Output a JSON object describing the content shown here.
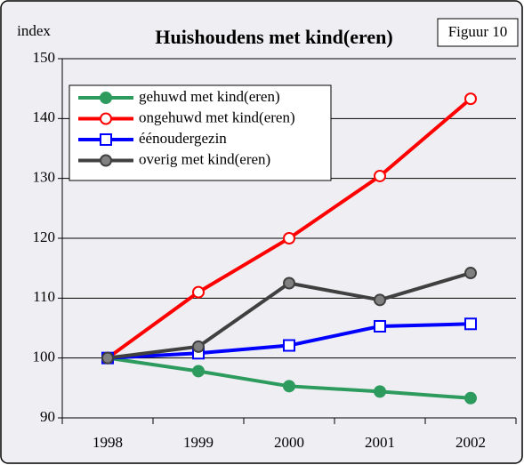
{
  "chart_data": {
    "type": "line",
    "title": "Huishoudens met kind(eren)",
    "ylabel": "index",
    "annotation": "Figuur 10",
    "categories": [
      "1998",
      "1999",
      "2000",
      "2001",
      "2002"
    ],
    "series": [
      {
        "name": "gehuwd met kind(eren)",
        "color": "#2e9b5e",
        "marker": "circle",
        "marker_fill": "#2e9b5e",
        "values": [
          100,
          97.8,
          95.3,
          94.4,
          93.3
        ]
      },
      {
        "name": "ongehuwd met kind(eren)",
        "color": "#ff0000",
        "marker": "circle",
        "marker_fill": "#ffffff",
        "values": [
          100,
          111,
          120,
          130.4,
          143.3
        ]
      },
      {
        "name": "éénoudergezin",
        "color": "#0000ff",
        "marker": "square",
        "marker_fill": "#ffffff",
        "values": [
          100,
          100.8,
          102.1,
          105.3,
          105.7
        ]
      },
      {
        "name": "overig met kind(eren)",
        "color": "#404040",
        "marker": "circle",
        "marker_fill": "#808080",
        "values": [
          100,
          101.9,
          112.5,
          109.7,
          114.2
        ]
      }
    ],
    "ylim": [
      90,
      150
    ],
    "yticks": [
      90,
      100,
      110,
      120,
      130,
      140,
      150
    ],
    "grid": true,
    "legend": "upper left"
  }
}
